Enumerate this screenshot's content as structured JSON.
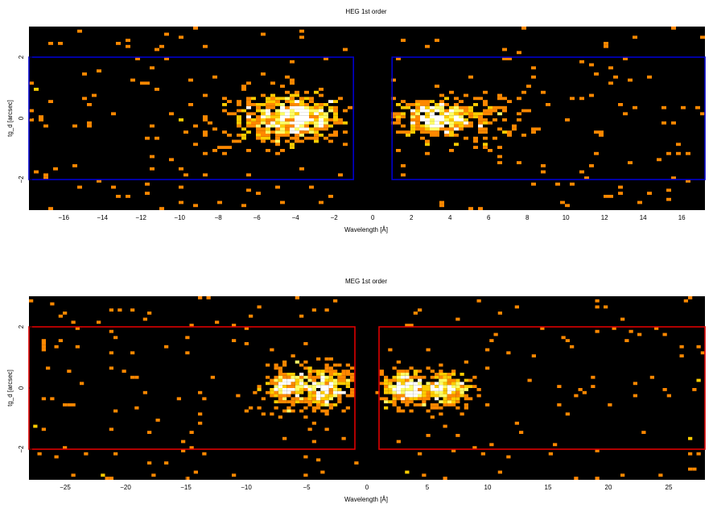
{
  "chart_data": [
    {
      "type": "heatmap",
      "title": "HEG 1st order",
      "xlabel": "Wavelength [Å]",
      "ylabel": "tg_d [arcsec]",
      "xlim": [
        -17.8,
        17.2
      ],
      "ylim": [
        -3.0,
        3.0
      ],
      "xticks": [
        -16,
        -14,
        -12,
        -10,
        -8,
        -6,
        -4,
        -2,
        0,
        2,
        4,
        6,
        8,
        10,
        12,
        14,
        16
      ],
      "yticks": [
        -2,
        0,
        2
      ],
      "grid": false,
      "background": "#000000",
      "region_color": "#0000cc",
      "regions": [
        {
          "x0": -17.8,
          "x1": -1.0,
          "y0": -2.0,
          "y1": 2.0
        },
        {
          "x0": 1.0,
          "x1": 17.2,
          "y0": -2.0,
          "y1": 2.0
        }
      ],
      "clusters": [
        {
          "xc": -3.8,
          "xs": 1.1,
          "yc": 0.0,
          "ys": 0.35,
          "n": 420
        },
        {
          "xc": -5.5,
          "xs": 1.4,
          "yc": 0.0,
          "ys": 0.45,
          "n": 160
        },
        {
          "xc": 3.1,
          "xs": 0.9,
          "yc": 0.0,
          "ys": 0.3,
          "n": 300
        },
        {
          "xc": 5.2,
          "xs": 1.5,
          "yc": 0.0,
          "ys": 0.4,
          "n": 120
        }
      ],
      "bins": {
        "x": 0.25,
        "y": 0.1
      }
    },
    {
      "type": "heatmap",
      "title": "MEG 1st order",
      "xlabel": "Wavelength [Å]",
      "ylabel": "tg_d [arcsec]",
      "xlim": [
        -28.0,
        28.0
      ],
      "ylim": [
        -3.0,
        3.0
      ],
      "xticks": [
        -25,
        -20,
        -15,
        -10,
        -5,
        0,
        5,
        10,
        15,
        20,
        25
      ],
      "yticks": [
        -2,
        0,
        2
      ],
      "grid": false,
      "background": "#000000",
      "region_color": "#dd0000",
      "regions": [
        {
          "x0": -28.0,
          "x1": -1.0,
          "y0": -2.0,
          "y1": 2.0
        },
        {
          "x0": 1.0,
          "x1": 28.0,
          "y0": -2.0,
          "y1": 2.0
        }
      ],
      "clusters": [
        {
          "xc": -6.5,
          "xs": 1.0,
          "yc": 0.0,
          "ys": 0.3,
          "n": 200
        },
        {
          "xc": -3.5,
          "xs": 1.0,
          "yc": 0.0,
          "ys": 0.35,
          "n": 260
        },
        {
          "xc": 3.3,
          "xs": 1.0,
          "yc": 0.0,
          "ys": 0.3,
          "n": 260
        },
        {
          "xc": 6.6,
          "xs": 1.0,
          "yc": 0.0,
          "ys": 0.3,
          "n": 200
        }
      ],
      "bins": {
        "x": 0.35,
        "y": 0.1
      }
    }
  ]
}
